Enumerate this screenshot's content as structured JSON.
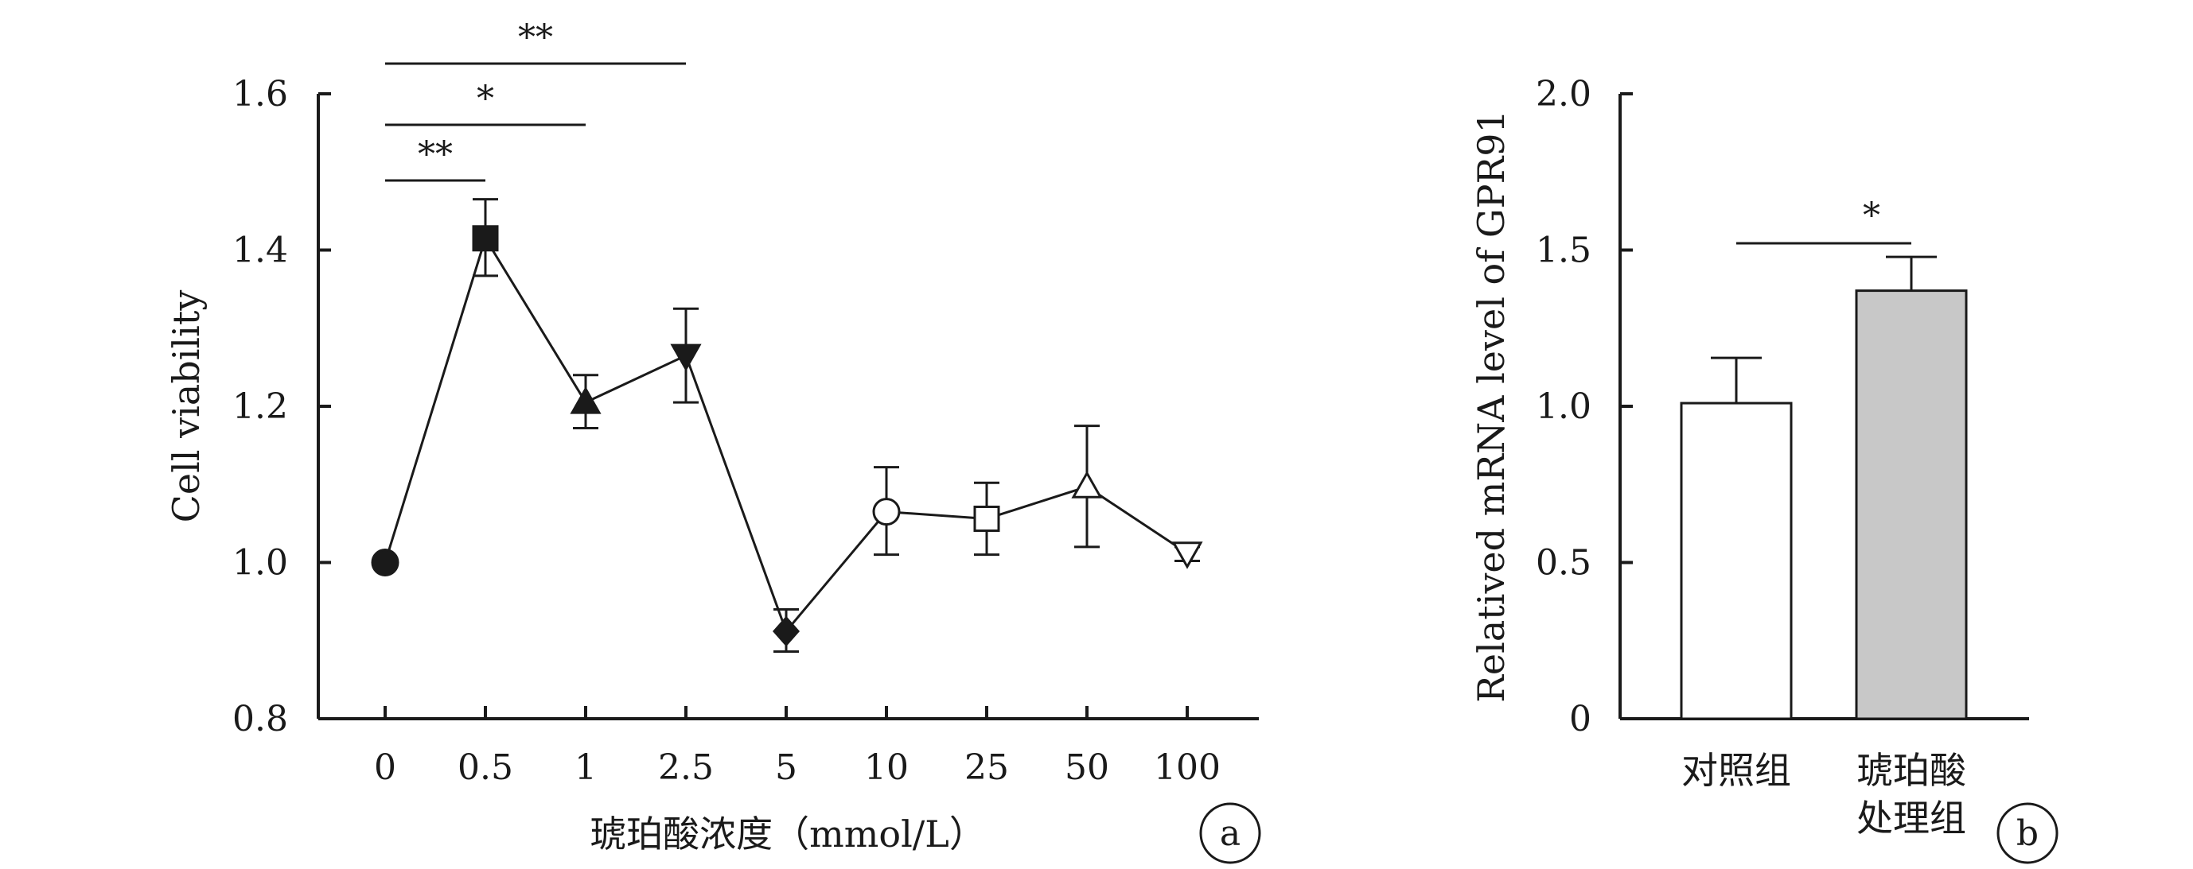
{
  "chart_data": [
    {
      "panel": "a",
      "type": "line",
      "ylabel": "Cell viability",
      "xlabel": "琥珀酸浓度（mmol/L）",
      "categories": [
        "0",
        "0.5",
        "1",
        "2.5",
        "5",
        "10",
        "25",
        "50",
        "100"
      ],
      "yticks": [
        "0.8",
        "1.0",
        "1.2",
        "1.4",
        "1.6"
      ],
      "ylim": [
        0.8,
        1.6
      ],
      "values": [
        1.0,
        1.415,
        1.205,
        1.265,
        0.912,
        1.065,
        1.056,
        1.097,
        1.012
      ],
      "error_upper": [
        1.0,
        1.465,
        1.24,
        1.325,
        0.94,
        1.122,
        1.102,
        1.175,
        1.02
      ],
      "error_lower": [
        1.0,
        1.367,
        1.172,
        1.205,
        0.886,
        1.01,
        1.01,
        1.02,
        1.002
      ],
      "markers": [
        "filled-circle",
        "filled-square",
        "filled-triangle-up",
        "filled-triangle-down",
        "filled-diamond",
        "open-circle",
        "open-square",
        "open-triangle-up",
        "open-triangle-down"
      ],
      "significance": [
        {
          "from": 0,
          "to": 3,
          "label": "**"
        },
        {
          "from": 0,
          "to": 2,
          "label": "*"
        },
        {
          "from": 0,
          "to": 1,
          "label": "**"
        }
      ],
      "panel_label": "a"
    },
    {
      "panel": "b",
      "type": "bar",
      "ylabel": "Relatived mRNA level of GPR91",
      "categories": [
        [
          "对照组"
        ],
        [
          "琥珀酸",
          "处理组"
        ]
      ],
      "yticks": [
        "0",
        "0.5",
        "1.0",
        "1.5",
        "2.0"
      ],
      "ylim": [
        0,
        2.0
      ],
      "values": [
        1.01,
        1.37
      ],
      "error_upper": [
        1.155,
        1.478
      ],
      "bar_colors": [
        "#ffffff",
        "#c8c8c8"
      ],
      "significance": [
        {
          "from": 0,
          "to": 1,
          "label": "*"
        }
      ],
      "panel_label": "b"
    }
  ]
}
